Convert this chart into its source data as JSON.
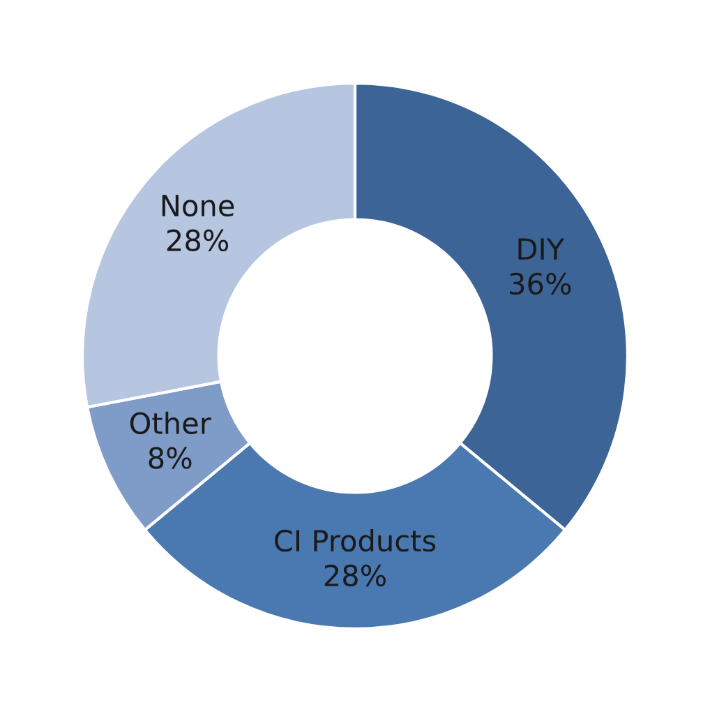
{
  "chart_data": {
    "type": "donut",
    "categories": [
      "DIY",
      "CI Products",
      "Other",
      "None"
    ],
    "values": [
      36,
      28,
      8,
      28
    ],
    "colors": [
      "#3d6496",
      "#4a78b0",
      "#7f9bc8",
      "#b6c6e1"
    ],
    "value_labels": [
      "36%",
      "28%",
      "8%",
      "28%"
    ],
    "legend": false
  }
}
